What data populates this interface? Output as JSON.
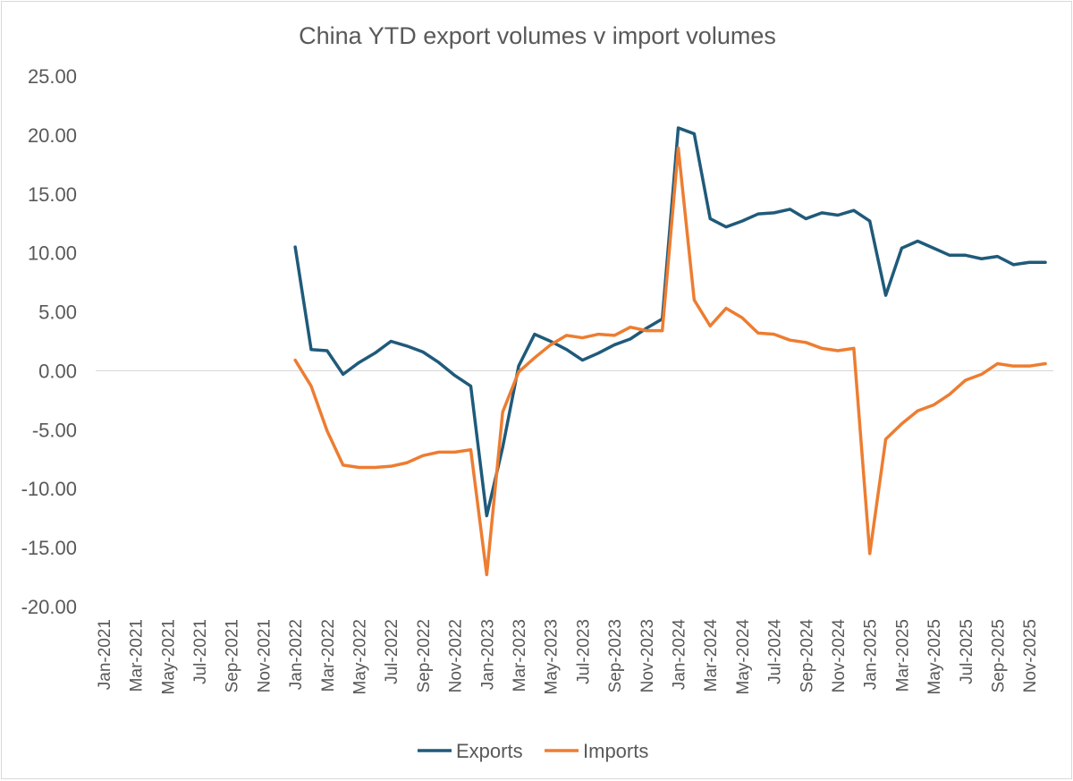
{
  "chart_data": {
    "type": "line",
    "title": "China YTD export volumes v import volumes",
    "xlabel": "",
    "ylabel": "",
    "ylim": [
      -20,
      25
    ],
    "y_ticks": [
      "25.00",
      "20.00",
      "15.00",
      "10.00",
      "5.00",
      "0.00",
      "-5.00",
      "-10.00",
      "-15.00",
      "-20.00"
    ],
    "y_tick_values": [
      25,
      20,
      15,
      10,
      5,
      0,
      -5,
      -10,
      -15,
      -20
    ],
    "categories": [
      "Jan-2021",
      "Feb-2021",
      "Mar-2021",
      "Apr-2021",
      "May-2021",
      "Jun-2021",
      "Jul-2021",
      "Aug-2021",
      "Sep-2021",
      "Oct-2021",
      "Nov-2021",
      "Dec-2021",
      "Jan-2022",
      "Feb-2022",
      "Mar-2022",
      "Apr-2022",
      "May-2022",
      "Jun-2022",
      "Jul-2022",
      "Aug-2022",
      "Sep-2022",
      "Oct-2022",
      "Nov-2022",
      "Dec-2022",
      "Jan-2023",
      "Feb-2023",
      "Mar-2023",
      "Apr-2023",
      "May-2023",
      "Jun-2023",
      "Jul-2023",
      "Aug-2023",
      "Sep-2023",
      "Oct-2023",
      "Nov-2023",
      "Dec-2023",
      "Jan-2024",
      "Feb-2024",
      "Mar-2024",
      "Apr-2024",
      "May-2024",
      "Jun-2024",
      "Jul-2024",
      "Aug-2024",
      "Sep-2024",
      "Oct-2024",
      "Nov-2024",
      "Dec-2024",
      "Jan-2025",
      "Feb-2025",
      "Mar-2025",
      "Apr-2025",
      "May-2025",
      "Jun-2025",
      "Jul-2025",
      "Aug-2025",
      "Sep-2025",
      "Oct-2025",
      "Nov-2025",
      "Dec-2025"
    ],
    "x_tick_labels": [
      "Jan-2021",
      "Mar-2021",
      "May-2021",
      "Jul-2021",
      "Sep-2021",
      "Nov-2021",
      "Jan-2022",
      "Mar-2022",
      "May-2022",
      "Jul-2022",
      "Sep-2022",
      "Nov-2022",
      "Jan-2023",
      "Mar-2023",
      "May-2023",
      "Jul-2023",
      "Sep-2023",
      "Nov-2023",
      "Jan-2024",
      "Mar-2024",
      "May-2024",
      "Jul-2024",
      "Sep-2024",
      "Nov-2024",
      "Jan-2025",
      "Mar-2025",
      "May-2025",
      "Jul-2025",
      "Sep-2025",
      "Nov-2025"
    ],
    "series": [
      {
        "name": "Exports",
        "color": "#1f5a7a",
        "values": [
          null,
          null,
          null,
          null,
          null,
          null,
          null,
          null,
          null,
          null,
          null,
          null,
          10.5,
          1.8,
          1.7,
          -0.3,
          0.7,
          1.5,
          2.5,
          2.1,
          1.6,
          0.7,
          -0.4,
          -1.3,
          -12.3,
          -6.5,
          0.4,
          3.1,
          2.5,
          1.8,
          0.9,
          1.5,
          2.2,
          2.7,
          3.6,
          4.4,
          20.6,
          20.1,
          12.9,
          12.2,
          12.7,
          13.3,
          13.4,
          13.7,
          12.9,
          13.4,
          13.2,
          13.6,
          12.7,
          6.4,
          10.4,
          11.0,
          10.4,
          9.8,
          9.8,
          9.5,
          9.7,
          9.0,
          9.2,
          9.2
        ]
      },
      {
        "name": "Imports",
        "color": "#ed7d31",
        "values": [
          null,
          null,
          null,
          null,
          null,
          null,
          null,
          null,
          null,
          null,
          null,
          null,
          0.9,
          -1.3,
          -5.1,
          -8.0,
          -8.2,
          -8.2,
          -8.1,
          -7.8,
          -7.2,
          -6.9,
          -6.9,
          -6.7,
          -17.3,
          -3.5,
          -0.1,
          1.1,
          2.2,
          3.0,
          2.8,
          3.1,
          3.0,
          3.7,
          3.4,
          3.4,
          18.9,
          6.0,
          3.8,
          5.3,
          4.5,
          3.2,
          3.1,
          2.6,
          2.4,
          1.9,
          1.7,
          1.9,
          -15.5,
          -5.8,
          -4.5,
          -3.4,
          -2.9,
          -2.0,
          -0.8,
          -0.3,
          0.6,
          0.4,
          0.4,
          0.6
        ]
      }
    ],
    "legend": {
      "position": "bottom",
      "entries": [
        "Exports",
        "Imports"
      ]
    },
    "grid": false
  }
}
